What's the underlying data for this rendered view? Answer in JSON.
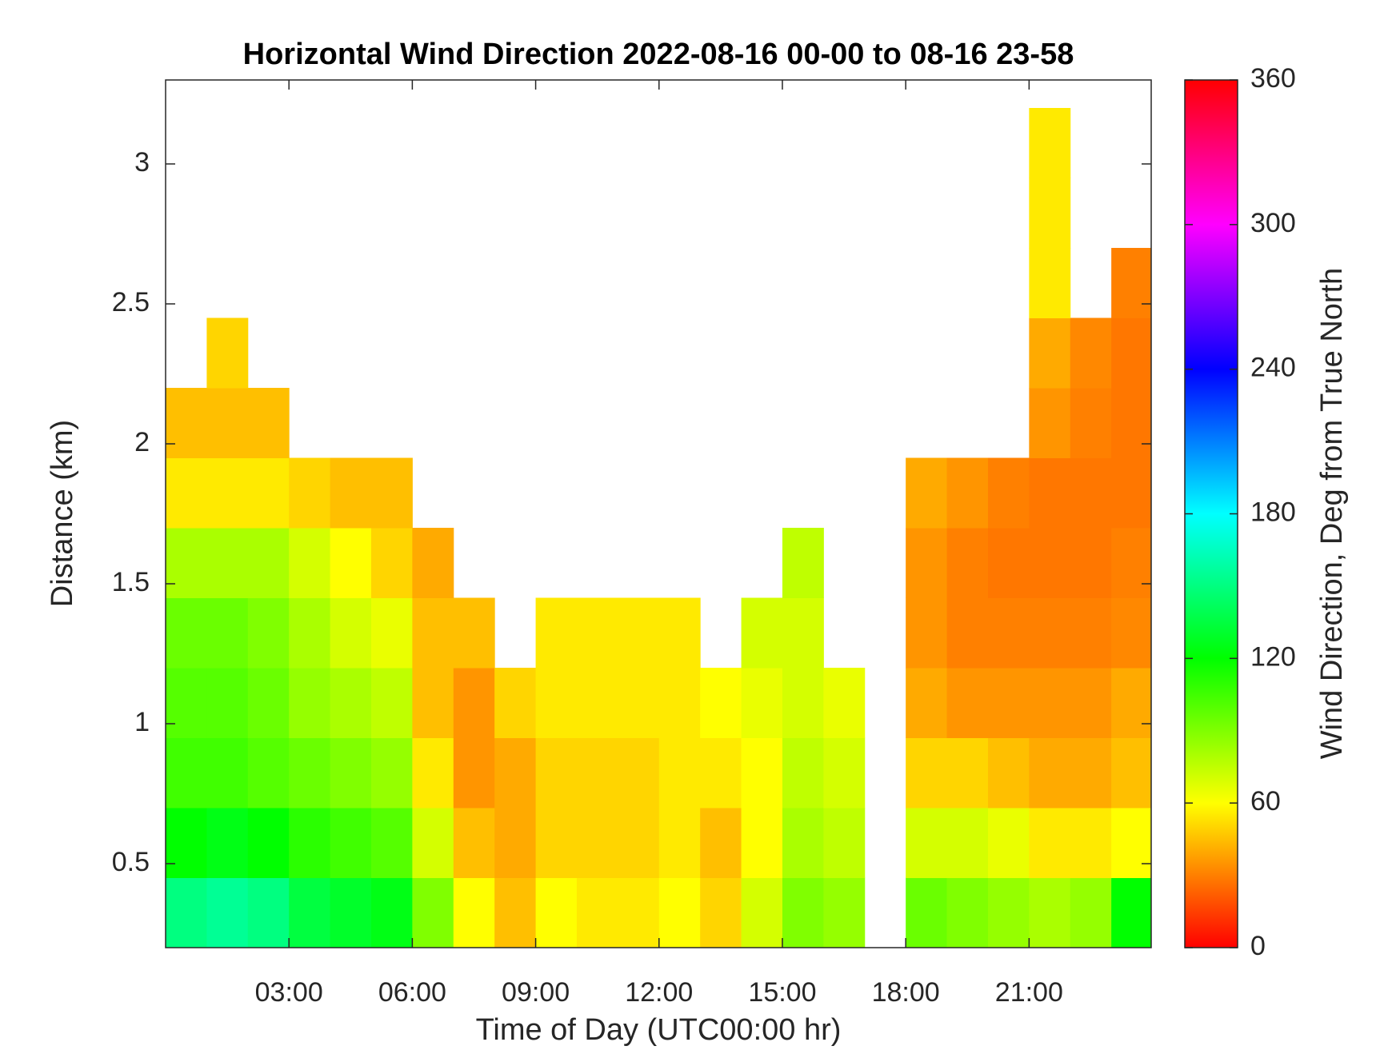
{
  "chart_data": {
    "type": "heatmap",
    "title": "Horizontal Wind Direction 2022-08-16 00-00 to 08-16 23-58",
    "x_label": "Time of Day (UTC00:00 hr)",
    "y_label": "Distance (km)",
    "colorbar_label": "Wind Direction, Deg from True North",
    "x": [
      0,
      1,
      2,
      3,
      4,
      5,
      6,
      7,
      8,
      9,
      10,
      11,
      12,
      13,
      14,
      15,
      16,
      17,
      18,
      19,
      20,
      21,
      22,
      23,
      24
    ],
    "y": [
      0.2,
      0.45,
      0.7,
      0.95,
      1.2,
      1.45,
      1.7,
      1.95,
      2.2,
      2.45,
      2.7,
      2.95,
      3.2
    ],
    "values": [
      [
        150,
        155,
        150,
        135,
        130,
        125,
        90,
        60,
        45,
        60,
        55,
        55,
        60,
        50,
        70,
        90,
        85,
        null,
        95,
        90,
        85,
        80,
        85,
        120
      ],
      [
        120,
        125,
        120,
        110,
        105,
        100,
        70,
        45,
        40,
        50,
        50,
        50,
        55,
        45,
        60,
        80,
        75,
        null,
        70,
        70,
        65,
        55,
        55,
        60
      ],
      [
        105,
        105,
        100,
        95,
        90,
        85,
        55,
        35,
        40,
        50,
        50,
        50,
        55,
        55,
        60,
        75,
        70,
        null,
        50,
        50,
        45,
        40,
        40,
        45
      ],
      [
        100,
        100,
        95,
        85,
        80,
        75,
        45,
        35,
        50,
        55,
        55,
        55,
        55,
        60,
        65,
        70,
        65,
        null,
        40,
        35,
        35,
        35,
        35,
        40
      ],
      [
        95,
        95,
        90,
        80,
        70,
        65,
        45,
        45,
        null,
        55,
        55,
        55,
        55,
        null,
        70,
        70,
        null,
        null,
        35,
        30,
        30,
        30,
        30,
        32
      ],
      [
        80,
        80,
        80,
        70,
        60,
        50,
        40,
        null,
        null,
        null,
        null,
        null,
        null,
        null,
        null,
        75,
        null,
        null,
        35,
        30,
        28,
        28,
        28,
        30
      ],
      [
        55,
        55,
        55,
        50,
        45,
        45,
        null,
        null,
        null,
        null,
        null,
        null,
        null,
        null,
        null,
        null,
        null,
        null,
        40,
        35,
        30,
        28,
        28,
        28
      ],
      [
        45,
        45,
        45,
        null,
        null,
        null,
        null,
        null,
        null,
        null,
        null,
        null,
        null,
        null,
        null,
        null,
        null,
        null,
        null,
        null,
        null,
        35,
        30,
        28
      ],
      [
        null,
        50,
        null,
        null,
        null,
        null,
        null,
        null,
        null,
        null,
        null,
        null,
        null,
        null,
        null,
        null,
        null,
        null,
        null,
        null,
        null,
        40,
        32,
        28
      ],
      [
        null,
        null,
        null,
        null,
        null,
        null,
        null,
        null,
        null,
        null,
        null,
        null,
        null,
        null,
        null,
        null,
        null,
        null,
        null,
        null,
        null,
        55,
        null,
        30
      ],
      [
        null,
        null,
        null,
        null,
        null,
        null,
        null,
        null,
        null,
        null,
        null,
        null,
        null,
        null,
        null,
        null,
        null,
        null,
        null,
        null,
        null,
        55,
        null,
        null
      ],
      [
        null,
        null,
        null,
        null,
        null,
        null,
        null,
        null,
        null,
        null,
        null,
        null,
        null,
        null,
        null,
        null,
        null,
        null,
        null,
        null,
        null,
        55,
        null,
        null
      ]
    ],
    "xlim": [
      0,
      23.97
    ],
    "xticks": [
      {
        "value": 3,
        "label": "03:00"
      },
      {
        "value": 6,
        "label": "06:00"
      },
      {
        "value": 9,
        "label": "09:00"
      },
      {
        "value": 12,
        "label": "12:00"
      },
      {
        "value": 15,
        "label": "15:00"
      },
      {
        "value": 18,
        "label": "18:00"
      },
      {
        "value": 21,
        "label": "21:00"
      }
    ],
    "ylim": [
      0.2,
      3.3
    ],
    "yticks": [
      0.5,
      1,
      1.5,
      2,
      2.5,
      3
    ],
    "clim": [
      0,
      360
    ],
    "cticks": [
      0,
      60,
      120,
      180,
      240,
      300,
      360
    ],
    "colormap": [
      "#ff0000",
      "#ffff00",
      "#00ff00",
      "#00ffff",
      "#0000ff",
      "#ff00ff",
      "#ff0000"
    ]
  }
}
